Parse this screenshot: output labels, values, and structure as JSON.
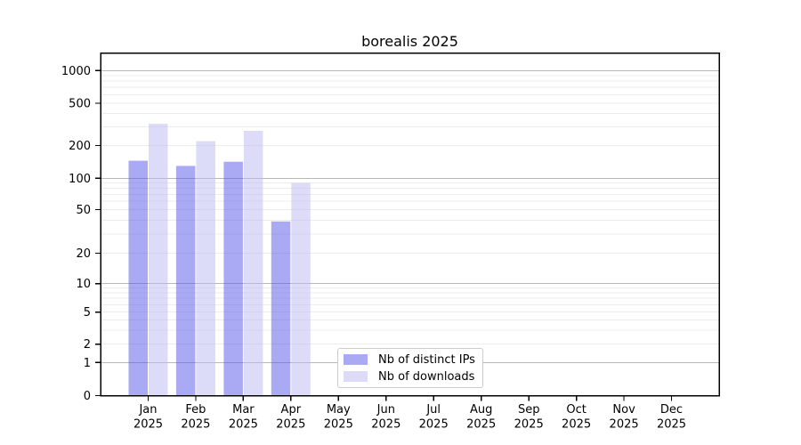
{
  "chart_data": {
    "type": "bar",
    "title": "borealis 2025",
    "categories": [
      {
        "month": "Jan",
        "year": "2025"
      },
      {
        "month": "Feb",
        "year": "2025"
      },
      {
        "month": "Mar",
        "year": "2025"
      },
      {
        "month": "Apr",
        "year": "2025"
      },
      {
        "month": "May",
        "year": "2025"
      },
      {
        "month": "Jun",
        "year": "2025"
      },
      {
        "month": "Jul",
        "year": "2025"
      },
      {
        "month": "Aug",
        "year": "2025"
      },
      {
        "month": "Sep",
        "year": "2025"
      },
      {
        "month": "Oct",
        "year": "2025"
      },
      {
        "month": "Nov",
        "year": "2025"
      },
      {
        "month": "Dec",
        "year": "2025"
      }
    ],
    "series": [
      {
        "name": "Nb of distinct IPs",
        "color": "#aaaaf4",
        "values": [
          145,
          130,
          142,
          39,
          0,
          0,
          0,
          0,
          0,
          0,
          0,
          0
        ]
      },
      {
        "name": "Nb of downloads",
        "color": "#dcdcf9",
        "values": [
          320,
          220,
          275,
          90,
          0,
          0,
          0,
          0,
          0,
          0,
          0,
          0
        ]
      }
    ],
    "yaxis": {
      "scale": "log-like",
      "ticks": [
        0,
        1,
        2,
        5,
        10,
        20,
        50,
        100,
        200,
        500,
        1000
      ],
      "range": [
        0,
        1500
      ],
      "grid": true,
      "grid_major_color": "#b8b8b8",
      "grid_minor_color": "#ececec"
    },
    "xaxis": {
      "tick_label_lines": 2
    },
    "legend_position": "lower-center"
  },
  "legend": {
    "items": [
      {
        "label": "Nb of distinct IPs",
        "color": "#aaaaf4"
      },
      {
        "label": "Nb of downloads",
        "color": "#dcdcf9"
      }
    ]
  }
}
